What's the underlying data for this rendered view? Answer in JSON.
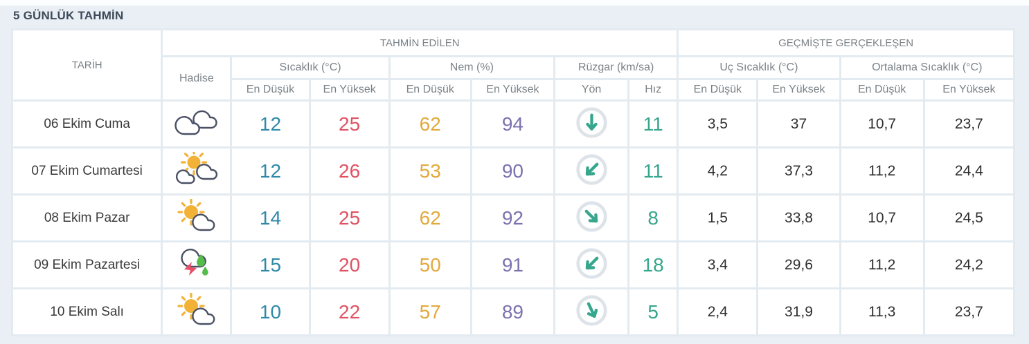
{
  "page": {
    "title": "5 GÜNLÜK TAHMİN"
  },
  "table": {
    "header": {
      "date": "TARİH",
      "predicted": "TAHMİN EDİLEN",
      "past": "GEÇMİŞTE GERÇEKLEŞEN",
      "condition": "Hadise",
      "groups": {
        "temperature": "Sıcaklık (°C)",
        "humidity": "Nem (%)",
        "wind": "Rüzgar (km/sa)",
        "extreme_temperature": "Uç Sıcaklık (°C)",
        "average_temperature": "Ortalama Sıcaklık (°C)"
      },
      "sub": {
        "min": "En Düşük",
        "max": "En Yüksek",
        "direction": "Yön",
        "speed": "Hız"
      }
    },
    "rows": [
      {
        "date": "06 Ekim Cuma",
        "condition_icon": "cloudy",
        "temp_min": "12",
        "temp_max": "25",
        "humidity_min": "62",
        "humidity_max": "94",
        "wind_direction": "S",
        "wind_deg": 0,
        "wind_speed": "11",
        "past_extreme_min": "3,5",
        "past_extreme_max": "37",
        "past_average_min": "10,7",
        "past_average_max": "23,7"
      },
      {
        "date": "07 Ekim Cumartesi",
        "condition_icon": "partly-sunny-two-clouds",
        "temp_min": "12",
        "temp_max": "26",
        "humidity_min": "53",
        "humidity_max": "90",
        "wind_direction": "SW",
        "wind_deg": 45,
        "wind_speed": "11",
        "past_extreme_min": "4,2",
        "past_extreme_max": "37,3",
        "past_average_min": "11,2",
        "past_average_max": "24,4"
      },
      {
        "date": "08 Ekim Pazar",
        "condition_icon": "partly-sunny",
        "temp_min": "14",
        "temp_max": "25",
        "humidity_min": "62",
        "humidity_max": "92",
        "wind_direction": "SE",
        "wind_deg": -45,
        "wind_speed": "8",
        "past_extreme_min": "1,5",
        "past_extreme_max": "33,8",
        "past_average_min": "10,7",
        "past_average_max": "24,5"
      },
      {
        "date": "09 Ekim Pazartesi",
        "condition_icon": "thunderstorm-rain",
        "temp_min": "15",
        "temp_max": "20",
        "humidity_min": "50",
        "humidity_max": "91",
        "wind_direction": "SW",
        "wind_deg": 45,
        "wind_speed": "18",
        "past_extreme_min": "3,4",
        "past_extreme_max": "29,6",
        "past_average_min": "11,2",
        "past_average_max": "24,2"
      },
      {
        "date": "10 Ekim Salı",
        "condition_icon": "partly-sunny",
        "temp_min": "10",
        "temp_max": "22",
        "humidity_min": "57",
        "humidity_max": "89",
        "wind_direction": "SSE",
        "wind_deg": -25,
        "wind_speed": "5",
        "past_extreme_min": "2,4",
        "past_extreme_max": "31,9",
        "past_average_min": "11,3",
        "past_average_max": "23,7"
      }
    ]
  },
  "colors": {
    "accent_min": "#2E89A8",
    "accent_max": "#DF5263",
    "accent_humidity_min": "#E2A93B",
    "accent_humidity_max": "#7A72AE",
    "accent_wind": "#36A68C",
    "wind_ring": "#DDE3E8",
    "title_text": "#3E4A59",
    "header_text": "#7B8287",
    "date_text": "#3A3A3A",
    "value_text": "#2E2E2E",
    "icon_outline": "#4A5064",
    "sun_yellow": "#F2B237",
    "lightning_red": "#E8506A",
    "rain_green": "#55BD4A"
  }
}
